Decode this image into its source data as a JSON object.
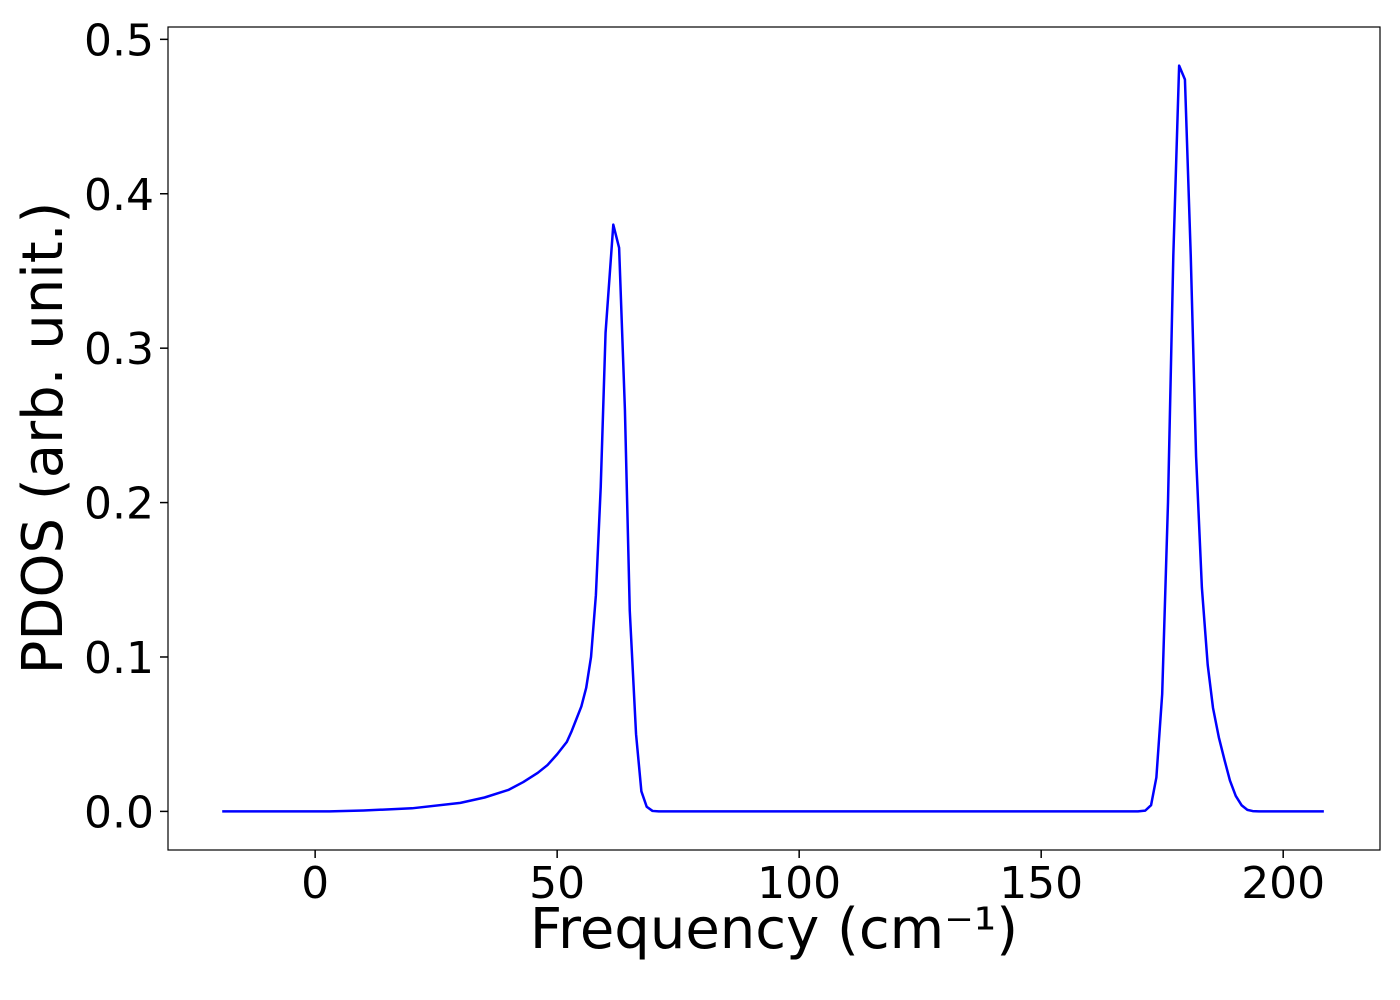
{
  "chart_data": {
    "type": "line",
    "x_label": "Frequency (cm⁻¹)",
    "y_label": "PDOS (arb. unit.)",
    "x": [
      -19.2,
      0,
      3,
      10,
      20,
      30,
      35,
      40,
      43,
      46,
      48,
      50,
      52,
      53,
      54,
      55,
      56,
      57,
      58,
      59,
      60,
      61.6,
      62.8,
      64,
      65,
      66.3,
      67.4,
      68.5,
      69.7,
      71,
      170,
      171.5,
      172.7,
      173.8,
      175,
      176.2,
      177.3,
      178.5,
      179.7,
      180.9,
      182,
      183.2,
      184.4,
      185.5,
      186.7,
      187.9,
      189,
      190.2,
      191.4,
      192.6,
      193.7,
      195,
      208.4
    ],
    "series": [
      {
        "color": "#0000ff",
        "values": [
          0,
          0,
          0,
          0.0006,
          0.002,
          0.0055,
          0.009,
          0.014,
          0.019,
          0.025,
          0.03,
          0.037,
          0.045,
          0.052,
          0.06,
          0.068,
          0.08,
          0.1,
          0.14,
          0.21,
          0.31,
          0.38,
          0.365,
          0.26,
          0.13,
          0.05,
          0.013,
          0.003,
          0.0003,
          0,
          0,
          0.0005,
          0.004,
          0.022,
          0.076,
          0.2,
          0.36,
          0.483,
          0.474,
          0.36,
          0.23,
          0.145,
          0.095,
          0.067,
          0.048,
          0.033,
          0.02,
          0.01,
          0.004,
          0.001,
          0.0002,
          0,
          0
        ]
      }
    ],
    "xlim": [
      -30.4,
      220.0
    ],
    "ylim": [
      -0.025,
      0.508
    ],
    "xticks": [
      0,
      50,
      100,
      150,
      200
    ],
    "yticks": [
      {
        "value": 0,
        "label": "0.0"
      },
      0.1,
      0.2,
      0.3,
      0.4,
      0.5
    ]
  }
}
